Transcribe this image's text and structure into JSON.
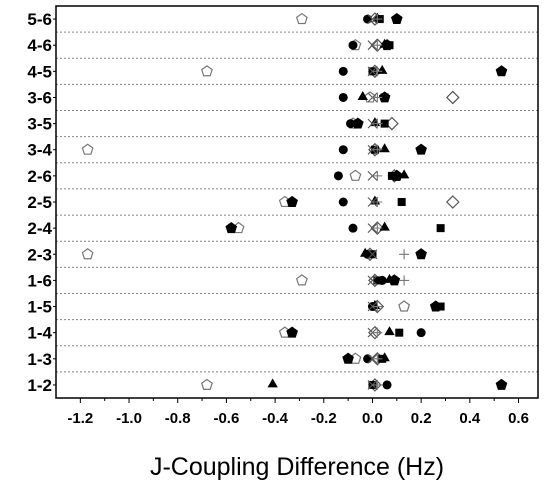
{
  "chart_data": {
    "type": "scatter",
    "title": "",
    "xlabel": "J-Coupling Difference (Hz)",
    "ylabel": "",
    "xlim": [
      -1.3,
      0.68
    ],
    "xticks": [
      -1.2,
      -1.0,
      -0.8,
      -0.6,
      -0.4,
      -0.2,
      0.0,
      0.2,
      0.4,
      0.6
    ],
    "xtick_labels": [
      "-1.2",
      "-1.0",
      "-0.8",
      "-0.6",
      "-0.4",
      "-0.2",
      "0.0",
      "0.2",
      "0.4",
      "0.6"
    ],
    "categories": [
      "5-6",
      "4-6",
      "4-5",
      "3-6",
      "3-5",
      "3-4",
      "2-6",
      "2-5",
      "2-4",
      "2-3",
      "1-6",
      "1-5",
      "1-4",
      "1-3",
      "1-2"
    ],
    "grid": "horizontal dotted between categories",
    "legend": "none",
    "series": [
      {
        "marker": "open-pentagon",
        "points": [
          {
            "cat": "5-6",
            "x": -0.29
          },
          {
            "cat": "4-6",
            "x": -0.07
          },
          {
            "cat": "4-5",
            "x": -0.68
          },
          {
            "cat": "3-6",
            "x": -0.01
          },
          {
            "cat": "3-5",
            "x": -0.08
          },
          {
            "cat": "3-4",
            "x": -1.17
          },
          {
            "cat": "2-6",
            "x": -0.07
          },
          {
            "cat": "2-5",
            "x": -0.36
          },
          {
            "cat": "2-4",
            "x": -0.55
          },
          {
            "cat": "2-3",
            "x": -1.17
          },
          {
            "cat": "1-6",
            "x": -0.29
          },
          {
            "cat": "1-5",
            "x": 0.13
          },
          {
            "cat": "1-4",
            "x": -0.36
          },
          {
            "cat": "1-3",
            "x": -0.07
          },
          {
            "cat": "1-2",
            "x": -0.68
          }
        ]
      },
      {
        "marker": "open-diamond",
        "points": [
          {
            "cat": "5-6",
            "x": 0.01
          },
          {
            "cat": "4-6",
            "x": 0.02
          },
          {
            "cat": "4-5",
            "x": 0.01
          },
          {
            "cat": "3-6",
            "x": 0.33
          },
          {
            "cat": "3-5",
            "x": 0.08
          },
          {
            "cat": "3-4",
            "x": 0.01
          },
          {
            "cat": "2-6",
            "x": 0.09
          },
          {
            "cat": "2-5",
            "x": 0.33
          },
          {
            "cat": "2-4",
            "x": 0.02
          },
          {
            "cat": "2-3",
            "x": -0.01
          },
          {
            "cat": "1-6",
            "x": 0.01
          },
          {
            "cat": "1-5",
            "x": 0.02
          },
          {
            "cat": "1-4",
            "x": 0.01
          },
          {
            "cat": "1-3",
            "x": 0.02
          },
          {
            "cat": "1-2",
            "x": 0.01
          }
        ]
      },
      {
        "marker": "filled-circle",
        "points": [
          {
            "cat": "5-6",
            "x": -0.02
          },
          {
            "cat": "4-6",
            "x": -0.08
          },
          {
            "cat": "4-5",
            "x": -0.12
          },
          {
            "cat": "3-6",
            "x": -0.12
          },
          {
            "cat": "3-5",
            "x": -0.09
          },
          {
            "cat": "3-4",
            "x": -0.12
          },
          {
            "cat": "2-6",
            "x": -0.14
          },
          {
            "cat": "2-5",
            "x": -0.12
          },
          {
            "cat": "2-4",
            "x": -0.08
          },
          {
            "cat": "2-3",
            "x": -0.02
          },
          {
            "cat": "1-6",
            "x": 0.04
          },
          {
            "cat": "1-5",
            "x": 0.0
          },
          {
            "cat": "1-4",
            "x": 0.2
          },
          {
            "cat": "1-3",
            "x": -0.02
          },
          {
            "cat": "1-2",
            "x": 0.06
          }
        ]
      },
      {
        "marker": "filled-triangle",
        "points": [
          {
            "cat": "5-6",
            "x": 0.02
          },
          {
            "cat": "4-6",
            "x": 0.05
          },
          {
            "cat": "4-5",
            "x": 0.04
          },
          {
            "cat": "3-6",
            "x": -0.04
          },
          {
            "cat": "3-5",
            "x": 0.01
          },
          {
            "cat": "3-4",
            "x": 0.05
          },
          {
            "cat": "2-6",
            "x": 0.13
          },
          {
            "cat": "2-5",
            "x": 0.01
          },
          {
            "cat": "2-4",
            "x": 0.05
          },
          {
            "cat": "2-3",
            "x": -0.03
          },
          {
            "cat": "1-6",
            "x": 0.07
          },
          {
            "cat": "1-5",
            "x": 0.01
          },
          {
            "cat": "1-4",
            "x": 0.07
          },
          {
            "cat": "1-3",
            "x": 0.05
          },
          {
            "cat": "1-2",
            "x": -0.41
          }
        ]
      },
      {
        "marker": "filled-square",
        "points": [
          {
            "cat": "5-6",
            "x": 0.03
          },
          {
            "cat": "4-6",
            "x": 0.07
          },
          {
            "cat": "4-5",
            "x": 0.0
          },
          {
            "cat": "3-6",
            "x": 0.05
          },
          {
            "cat": "3-5",
            "x": 0.05
          },
          {
            "cat": "3-4",
            "x": 0.01
          },
          {
            "cat": "2-6",
            "x": 0.08
          },
          {
            "cat": "2-5",
            "x": 0.12
          },
          {
            "cat": "2-4",
            "x": 0.28
          },
          {
            "cat": "2-3",
            "x": 0.0
          },
          {
            "cat": "1-6",
            "x": 0.02
          },
          {
            "cat": "1-5",
            "x": 0.28
          },
          {
            "cat": "1-4",
            "x": 0.11
          },
          {
            "cat": "1-3",
            "x": 0.04
          },
          {
            "cat": "1-2",
            "x": 0.0
          }
        ]
      },
      {
        "marker": "filled-pentagon",
        "points": [
          {
            "cat": "5-6",
            "x": 0.1
          },
          {
            "cat": "4-6",
            "x": 0.06
          },
          {
            "cat": "4-5",
            "x": 0.53
          },
          {
            "cat": "3-6",
            "x": 0.05
          },
          {
            "cat": "3-5",
            "x": -0.06
          },
          {
            "cat": "3-4",
            "x": 0.2
          },
          {
            "cat": "2-6",
            "x": 0.1
          },
          {
            "cat": "2-5",
            "x": -0.33
          },
          {
            "cat": "2-4",
            "x": -0.58
          },
          {
            "cat": "2-3",
            "x": 0.2
          },
          {
            "cat": "1-6",
            "x": 0.09
          },
          {
            "cat": "1-5",
            "x": 0.26
          },
          {
            "cat": "1-4",
            "x": -0.33
          },
          {
            "cat": "1-3",
            "x": -0.1
          },
          {
            "cat": "1-2",
            "x": 0.53
          }
        ]
      },
      {
        "marker": "cross",
        "points": [
          {
            "cat": "5-6",
            "x": 0.0
          },
          {
            "cat": "4-6",
            "x": 0.0
          },
          {
            "cat": "4-5",
            "x": 0.0
          },
          {
            "cat": "3-6",
            "x": 0.0
          },
          {
            "cat": "3-5",
            "x": 0.0
          },
          {
            "cat": "3-4",
            "x": 0.0
          },
          {
            "cat": "2-6",
            "x": 0.0
          },
          {
            "cat": "2-5",
            "x": 0.0
          },
          {
            "cat": "2-4",
            "x": 0.0
          },
          {
            "cat": "2-3",
            "x": 0.0
          },
          {
            "cat": "1-6",
            "x": 0.0
          },
          {
            "cat": "1-5",
            "x": 0.0
          },
          {
            "cat": "1-4",
            "x": 0.0
          },
          {
            "cat": "1-3",
            "x": 0.0
          },
          {
            "cat": "1-2",
            "x": 0.0
          }
        ]
      },
      {
        "marker": "plus",
        "points": [
          {
            "cat": "5-6",
            "x": 0.02
          },
          {
            "cat": "4-6",
            "x": 0.02
          },
          {
            "cat": "4-5",
            "x": 0.02
          },
          {
            "cat": "3-6",
            "x": 0.02
          },
          {
            "cat": "3-5",
            "x": 0.02
          },
          {
            "cat": "3-4",
            "x": 0.02
          },
          {
            "cat": "2-6",
            "x": 0.02
          },
          {
            "cat": "2-5",
            "x": 0.02
          },
          {
            "cat": "2-4",
            "x": 0.02
          },
          {
            "cat": "2-3",
            "x": 0.13
          },
          {
            "cat": "1-6",
            "x": 0.13
          },
          {
            "cat": "1-5",
            "x": 0.02
          },
          {
            "cat": "1-4",
            "x": 0.02
          },
          {
            "cat": "1-3",
            "x": 0.02
          },
          {
            "cat": "1-2",
            "x": 0.02
          }
        ]
      }
    ]
  }
}
